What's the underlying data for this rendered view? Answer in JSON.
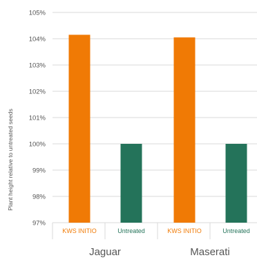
{
  "chart_data": {
    "type": "bar",
    "ylabel": "Plant height relative to untreated seeds",
    "ylim": [
      97,
      105
    ],
    "yticks": [
      97,
      98,
      99,
      100,
      101,
      102,
      103,
      104,
      105
    ],
    "ytick_labels": [
      "97%",
      "98%",
      "99%",
      "100%",
      "101%",
      "102%",
      "103%",
      "104%",
      "105%"
    ],
    "grid": true,
    "groups": [
      {
        "name": "Jaguar",
        "bars": [
          {
            "category": "KWS INITIO",
            "value": 104.15,
            "color": "#f07a05"
          },
          {
            "category": "Untreated",
            "value": 100.0,
            "color": "#24735a"
          }
        ]
      },
      {
        "name": "Maserati",
        "bars": [
          {
            "category": "KWS INITIO",
            "value": 104.05,
            "color": "#f07a05"
          },
          {
            "category": "Untreated",
            "value": 100.0,
            "color": "#24735a"
          }
        ]
      }
    ]
  }
}
